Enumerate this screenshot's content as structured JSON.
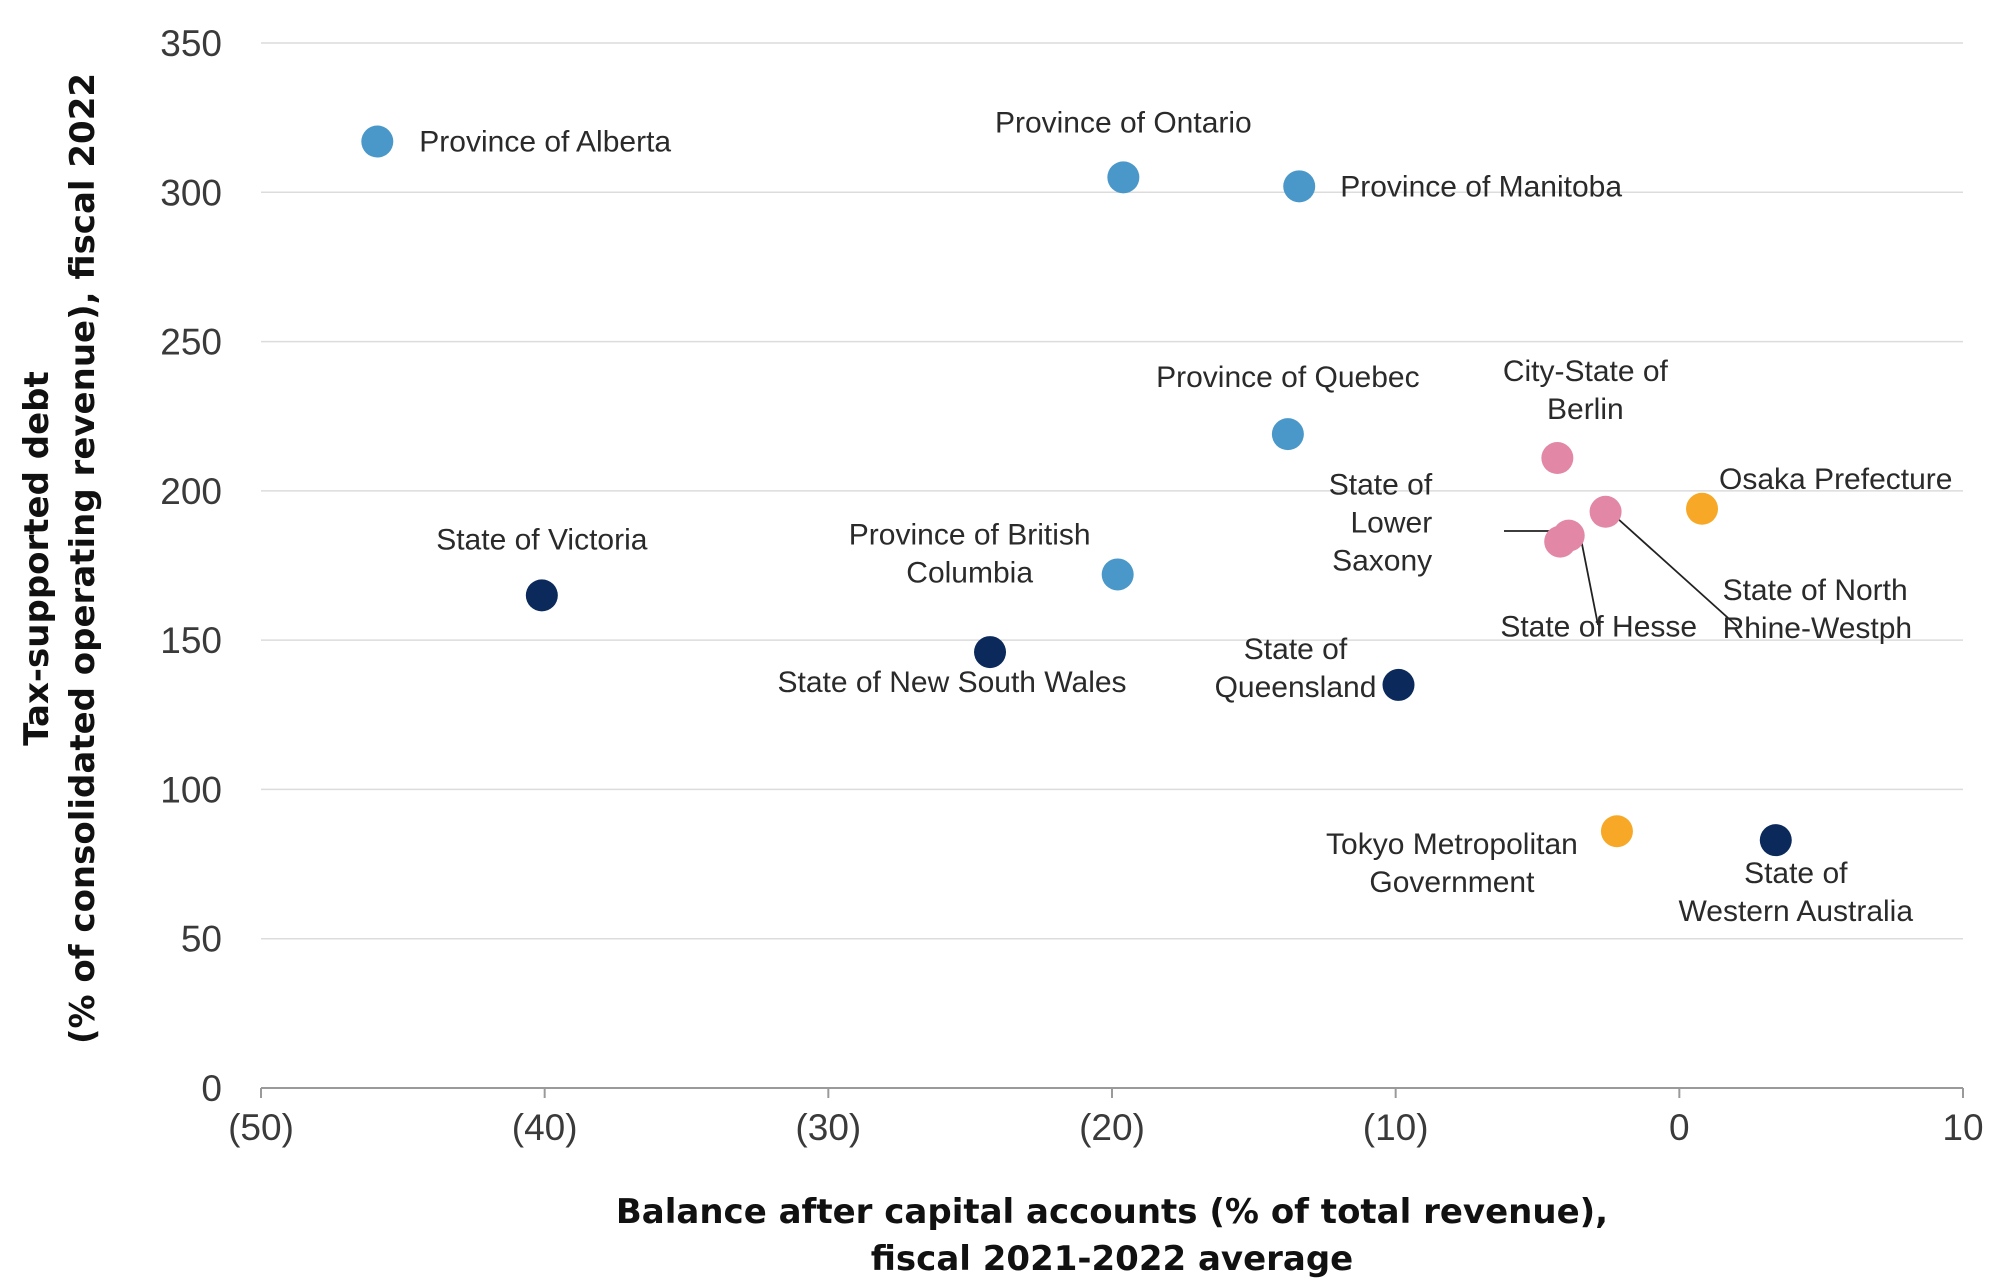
{
  "colors": {
    "canada": "#4a98c9",
    "australia": "#0b2a5b",
    "germany": "#e287a6",
    "japan": "#f7a826"
  },
  "chart_data": {
    "type": "scatter",
    "title": "",
    "xlabel": [
      "Balance after capital accounts (% of total revenue),",
      "fiscal 2021-2022 average"
    ],
    "ylabel": [
      "Tax-supported debt",
      "(% of consolidated operating revenue), fiscal 2022"
    ],
    "xlim": [
      -50,
      10
    ],
    "ylim": [
      0,
      350
    ],
    "x_ticks": [
      -50,
      -40,
      -30,
      -20,
      -10,
      0,
      10
    ],
    "x_tick_labels": [
      "(50)",
      "(40)",
      "(30)",
      "(20)",
      "(10)",
      "0",
      "10"
    ],
    "y_ticks": [
      0,
      50,
      100,
      150,
      200,
      250,
      300,
      350
    ],
    "y_tick_labels": [
      "0",
      "50",
      "100",
      "150",
      "200",
      "250",
      "300",
      "350"
    ],
    "grid": "horizontal",
    "legend": "none",
    "points": [
      {
        "label": [
          "Province of Alberta"
        ],
        "x": -45.9,
        "y": 317,
        "group": "canada"
      },
      {
        "label": [
          "Province of Ontario"
        ],
        "x": -19.6,
        "y": 305,
        "group": "canada"
      },
      {
        "label": [
          "Province of Manitoba"
        ],
        "x": -13.4,
        "y": 302,
        "group": "canada"
      },
      {
        "label": [
          "Province of Quebec"
        ],
        "x": -13.8,
        "y": 219,
        "group": "canada"
      },
      {
        "label": [
          "Province of British",
          "Columbia"
        ],
        "x": -19.8,
        "y": 172,
        "group": "canada"
      },
      {
        "label": [
          "State of Victoria"
        ],
        "x": -40.1,
        "y": 165,
        "group": "australia"
      },
      {
        "label": [
          "State of New South Wales"
        ],
        "x": -24.3,
        "y": 146,
        "group": "australia"
      },
      {
        "label": [
          "State of",
          "Queensland"
        ],
        "x": -9.9,
        "y": 135,
        "group": "australia"
      },
      {
        "label": [
          "State of",
          "Western Australia"
        ],
        "x": 3.4,
        "y": 83,
        "group": "australia"
      },
      {
        "label": [
          "City-State of",
          "Berlin"
        ],
        "x": -4.3,
        "y": 211,
        "group": "germany"
      },
      {
        "label": [
          "State of North",
          "Rhine-Westph"
        ],
        "x": -2.6,
        "y": 193,
        "group": "germany"
      },
      {
        "label": [
          "State of Hesse"
        ],
        "x": -3.9,
        "y": 185,
        "group": "germany"
      },
      {
        "label": [
          "State of",
          "Lower",
          "Saxony"
        ],
        "x": -4.2,
        "y": 183,
        "group": "germany"
      },
      {
        "label": [
          "Osaka Prefecture"
        ],
        "x": 0.8,
        "y": 194,
        "group": "japan"
      },
      {
        "label": [
          "Tokyo Metropolitan",
          "Government"
        ],
        "x": -2.2,
        "y": 86,
        "group": "japan"
      }
    ]
  }
}
